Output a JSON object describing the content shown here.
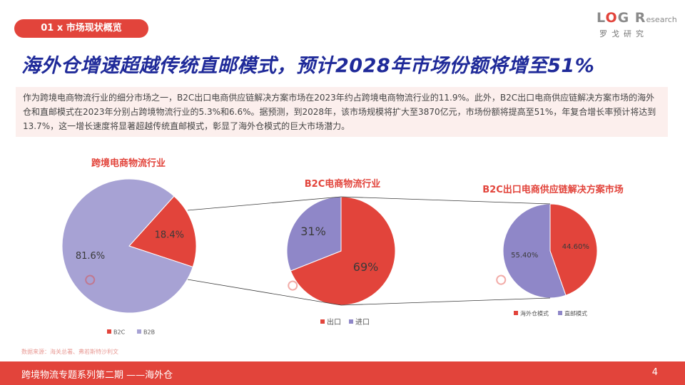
{
  "header": {
    "section_tag": "01 x 市场现状概览",
    "logo": {
      "word_l": "L",
      "word_o": "O",
      "word_gr": "G R",
      "word_small": "esearch",
      "sub": "罗戈研究"
    }
  },
  "title": "海外仓增速超越传统直邮模式，预计2028年市场份额将增至51%",
  "intro": "作为跨境电商物流行业的细分市场之一，B2C出口电商供应链解决方案市场在2023年约占跨境电商物流行业的11.9%。此外，B2C出口电商供应链解决方案市场的海外仓和直邮模式在2023年分别占跨境物流行业的5.3%和6.6%。据预测，到2028年，该市场规模将扩大至3870亿元，市场份额将提高至51%，年复合增长率预计将达到13.7%，这一增长速度将显著超越传统直邮模式，彰显了海外仓模式的巨大市场潜力。",
  "colors": {
    "accent": "#e2443b",
    "purple": "#9d99cf",
    "purple_dark": "#8f87c8",
    "title_blue": "#1f2a99"
  },
  "chart_data": [
    {
      "type": "pie",
      "title": "跨境电商物流行业",
      "slices": [
        {
          "label": "B2C",
          "value": 18.4,
          "display": "18.4%",
          "color": "#e2443b"
        },
        {
          "label": "B2B",
          "value": 81.6,
          "display": "81.6%",
          "color": "#a7a2d4"
        }
      ],
      "legend_position": "bottom"
    },
    {
      "type": "pie",
      "title": "B2C电商物流行业",
      "slices": [
        {
          "label": "出口",
          "value": 69,
          "display": "69%",
          "color": "#e2443b"
        },
        {
          "label": "进口",
          "value": 31,
          "display": "31%",
          "color": "#8f87c8"
        }
      ],
      "legend_position": "bottom"
    },
    {
      "type": "pie",
      "title": "B2C出口电商供应链解决方案市场",
      "slices": [
        {
          "label": "海外仓模式",
          "value": 44.6,
          "display": "44.60%",
          "color": "#e2443b"
        },
        {
          "label": "直邮模式",
          "value": 55.4,
          "display": "55.40%",
          "color": "#8f87c8"
        }
      ],
      "legend_position": "bottom"
    }
  ],
  "source": "数据来源：海关总署、弗若斯特沙利文",
  "footer": {
    "series": "跨境物流专题系列第二期 ——海外仓",
    "page": "4"
  }
}
